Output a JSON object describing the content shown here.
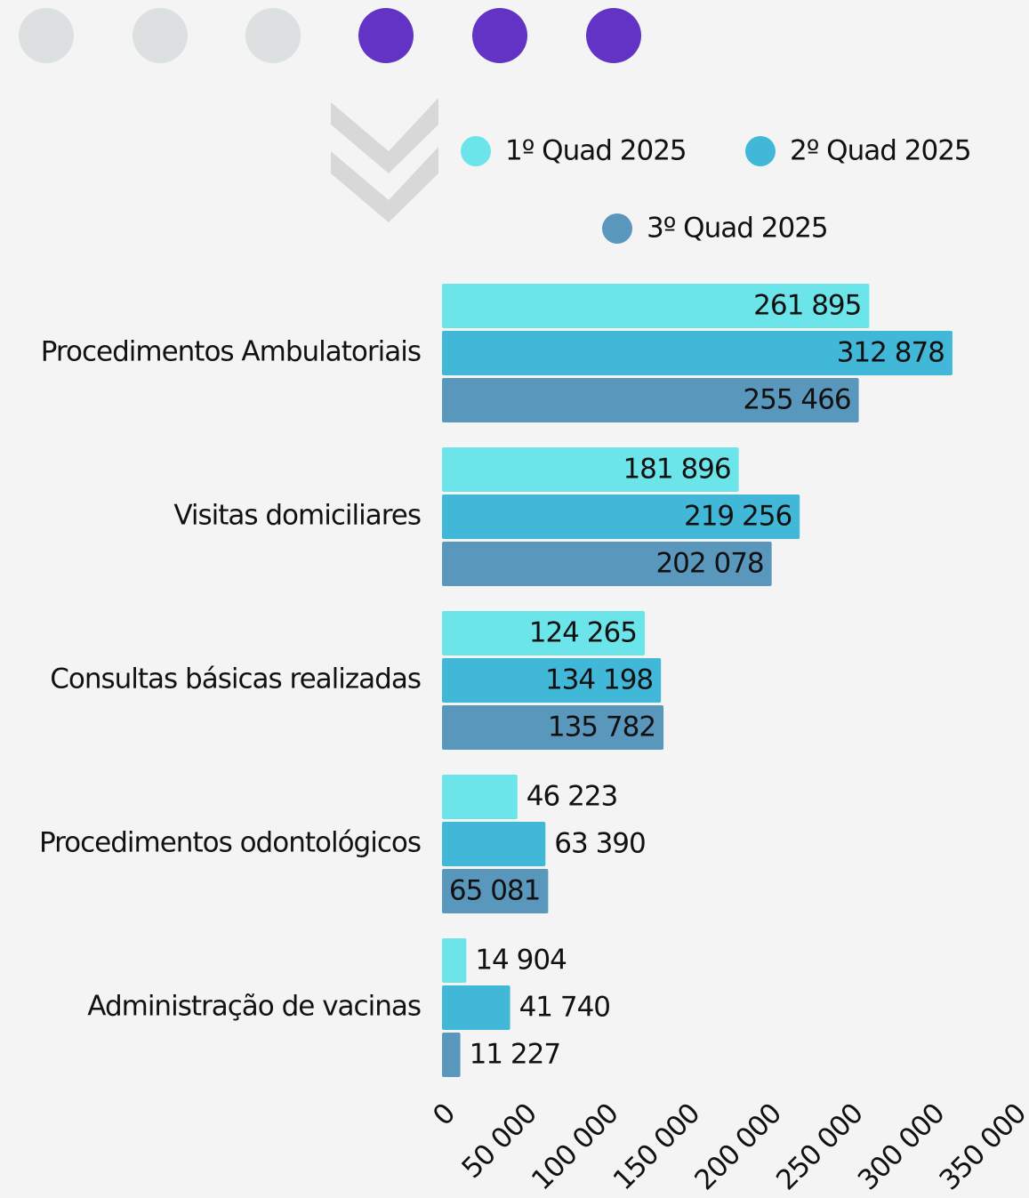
{
  "chart_data": {
    "type": "bar",
    "orientation": "horizontal",
    "categories": [
      "Procedimentos Ambulatoriais",
      "Visitas domiciliares",
      "Consultas básicas realizadas",
      "Procedimentos odontológicos",
      "Administração de vacinas"
    ],
    "series": [
      {
        "name": "1º Quad 2025",
        "color": "#6be5ea",
        "label_color": "#111111",
        "values": [
          261895,
          181896,
          124265,
          46223,
          14904
        ],
        "value_labels": [
          "261 895",
          "181 896",
          "124 265",
          "46 223",
          "14 904"
        ]
      },
      {
        "name": "2º Quad 2025",
        "color": "#41b8d8",
        "label_color": "#111111",
        "values": [
          312878,
          219256,
          134198,
          63390,
          41740
        ],
        "value_labels": [
          "312 878",
          "219 256",
          "134 198",
          "63 390",
          "41 740"
        ]
      },
      {
        "name": "3º Quad 2025",
        "color": "#5a97bd",
        "label_color": "#ffffff",
        "values": [
          255466,
          202078,
          135782,
          65081,
          11227
        ],
        "value_labels": [
          "255 466",
          "202 078",
          "135 782",
          "65 081",
          "11 227"
        ]
      }
    ],
    "xlim": [
      0,
      350000
    ],
    "xticks": [
      0,
      {
        "value": 50000,
        "label": "50 000"
      },
      {
        "value": 100000,
        "label": "100 000"
      },
      {
        "value": 150000,
        "label": "150 000"
      },
      {
        "value": 200000,
        "label": "200 000"
      },
      {
        "value": 250000,
        "label": "250 000"
      },
      {
        "value": 300000,
        "label": "300 000"
      },
      {
        "value": 350000,
        "label": "350 000"
      }
    ],
    "grid": false
  }
}
